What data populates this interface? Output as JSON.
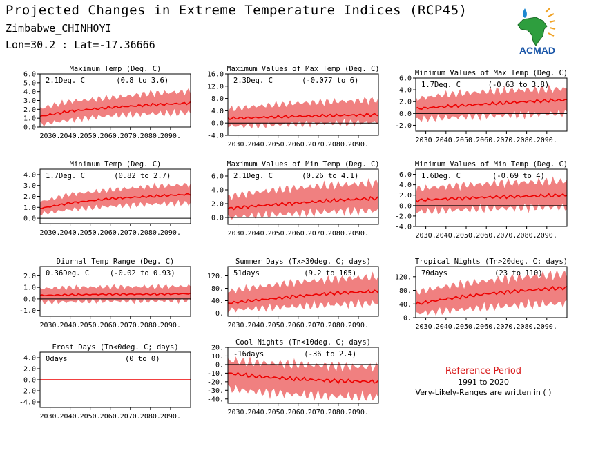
{
  "header": {
    "title": "Projected Changes in Extreme Temperature Indices (RCP45)",
    "site": "Zimbabwe_CHINHOYI",
    "coords": "Lon=30.2 : Lat=-17.36666"
  },
  "logo": {
    "text": "ACMAD",
    "icon": "acmad-africa-logo"
  },
  "colors": {
    "band": "#f08080",
    "line": "#ee0000",
    "axis": "#000000",
    "refTitle": "#d81a1a"
  },
  "reference": {
    "title": "Reference Period",
    "years": "1991 to 2020",
    "note": "Very-Likely-Ranges are written in ( )"
  },
  "chart_data": [
    {
      "type": "area",
      "title": "Maximum Temp (Deg. C)",
      "summary": "2.1Deg. C",
      "range": "(0.8 to 3.6)",
      "ylim": [
        0,
        6
      ],
      "yticks": [
        0,
        1,
        2,
        3,
        4,
        5,
        6
      ],
      "ytick_labels": [
        "0.0",
        "1.0",
        "2.0",
        "3.0",
        "4.0",
        "5.0",
        "6.0"
      ],
      "xticks": [
        "2030.",
        "2040.",
        "2050.",
        "2060.",
        "2070.",
        "2080.",
        "2090."
      ],
      "median_x": [
        2025,
        2040,
        2060,
        2080,
        2100
      ],
      "median_y": [
        1.2,
        1.8,
        2.2,
        2.5,
        2.7
      ],
      "band_lower": [
        0.3,
        0.8,
        1.3,
        1.5,
        1.6
      ],
      "band_upper": [
        2.1,
        2.9,
        3.3,
        3.8,
        4.0
      ]
    },
    {
      "type": "area",
      "title": "Maximum Values of Max Temp (Deg. C)",
      "summary": "2.3Deg. C",
      "range": "(-0.077 to 6)",
      "ylim": [
        -4,
        16
      ],
      "yticks": [
        -4,
        0,
        4,
        8,
        12,
        16
      ],
      "ytick_labels": [
        "-4.0",
        "0.0",
        "4.0",
        "8.0",
        "12.0",
        "16.0"
      ],
      "xticks": [
        "2030.",
        "2040.",
        "2050.",
        "2060.",
        "2070.",
        "2080.",
        "2090."
      ],
      "median_x": [
        2025,
        2040,
        2060,
        2080,
        2100
      ],
      "median_y": [
        1.5,
        1.8,
        2.2,
        2.5,
        2.7
      ],
      "band_lower": [
        -1.0,
        -0.8,
        -0.3,
        0.0,
        0.2
      ],
      "band_upper": [
        4.5,
        5.5,
        6.5,
        7.0,
        7.5
      ]
    },
    {
      "type": "area",
      "title": "Minimum Values of Max Temp (Deg. C)",
      "summary": "1.7Deg. C",
      "range": "(-0.63 to 3.8)",
      "ylim": [
        -3,
        6
      ],
      "yticks": [
        -2,
        0,
        2,
        4,
        6
      ],
      "ytick_labels": [
        "-2.0",
        "0.0",
        "2.0",
        "4.0",
        "6.0"
      ],
      "xticks": [
        "2030.",
        "2040.",
        "2050.",
        "2060.",
        "2070.",
        "2080.",
        "2090."
      ],
      "median_x": [
        2025,
        2040,
        2060,
        2080,
        2100
      ],
      "median_y": [
        0.8,
        1.2,
        1.6,
        2.0,
        2.3
      ],
      "band_lower": [
        -1.0,
        -0.7,
        -0.4,
        -0.2,
        0.0
      ],
      "band_upper": [
        2.5,
        3.2,
        3.7,
        4.0,
        4.2
      ]
    },
    {
      "type": "area",
      "title": "Minimum Temp (Deg. C)",
      "summary": "1.7Deg. C",
      "range": "(0.82 to 2.7)",
      "ylim": [
        -0.5,
        4.5
      ],
      "yticks": [
        0,
        1,
        2,
        3,
        4
      ],
      "ytick_labels": [
        "0.0",
        "1.0",
        "2.0",
        "3.0",
        "4.0"
      ],
      "xticks": [
        "2030.",
        "2040.",
        "2050.",
        "2060.",
        "2070.",
        "2080.",
        "2090."
      ],
      "median_x": [
        2025,
        2040,
        2060,
        2080,
        2100
      ],
      "median_y": [
        0.9,
        1.4,
        1.8,
        2.0,
        2.2
      ],
      "band_lower": [
        0.4,
        0.8,
        1.1,
        1.3,
        1.4
      ],
      "band_upper": [
        1.5,
        2.2,
        2.6,
        2.9,
        3.1
      ]
    },
    {
      "type": "area",
      "title": "Maximum Values of Min Temp (Deg. C)",
      "summary": "2.1Deg. C",
      "range": "(0.26 to 4.1)",
      "ylim": [
        -1,
        7
      ],
      "yticks": [
        0,
        2,
        4,
        6
      ],
      "ytick_labels": [
        "0.0",
        "2.0",
        "4.0",
        "6.0"
      ],
      "xticks": [
        "2030.",
        "2040.",
        "2050.",
        "2060.",
        "2070.",
        "2080.",
        "2090."
      ],
      "median_x": [
        2025,
        2040,
        2060,
        2080,
        2100
      ],
      "median_y": [
        1.3,
        1.7,
        2.1,
        2.5,
        2.8
      ],
      "band_lower": [
        0.0,
        0.3,
        0.6,
        0.9,
        1.0
      ],
      "band_upper": [
        3.0,
        3.7,
        4.3,
        4.7,
        5.0
      ]
    },
    {
      "type": "area",
      "title": "Minimum Values of Min Temp (Deg. C)",
      "summary": "1.6Deg. C",
      "range": "(-0.69 to 4)",
      "ylim": [
        -4,
        7
      ],
      "yticks": [
        -4,
        -2,
        0,
        2,
        4,
        6
      ],
      "ytick_labels": [
        "-4.0",
        "-2.0",
        "0.0",
        "2.0",
        "4.0",
        "6.0"
      ],
      "xticks": [
        "2030.",
        "2040.",
        "2050.",
        "2060.",
        "2070.",
        "2080.",
        "2090."
      ],
      "median_x": [
        2025,
        2040,
        2060,
        2080,
        2100
      ],
      "median_y": [
        1.0,
        1.3,
        1.6,
        1.8,
        2.0
      ],
      "band_lower": [
        -1.2,
        -0.9,
        -0.6,
        -0.4,
        -0.3
      ],
      "band_upper": [
        3.2,
        3.7,
        4.2,
        4.5,
        4.7
      ]
    },
    {
      "type": "area",
      "title": "Diurnal Temp Range (Deg. C)",
      "summary": "0.36Deg. C",
      "range": "(-0.02 to 0.93)",
      "ylim": [
        -1.5,
        2.8
      ],
      "yticks": [
        -1,
        0,
        1,
        2
      ],
      "ytick_labels": [
        "-1.0",
        "0.0",
        "1.0",
        "2.0"
      ],
      "xticks": [
        "2030.",
        "2040.",
        "2050.",
        "2060.",
        "2070.",
        "2080.",
        "2090."
      ],
      "median_x": [
        2025,
        2040,
        2060,
        2080,
        2100
      ],
      "median_y": [
        0.3,
        0.35,
        0.4,
        0.4,
        0.45
      ],
      "band_lower": [
        -0.3,
        -0.25,
        -0.2,
        -0.2,
        -0.15
      ],
      "band_upper": [
        0.9,
        1.0,
        1.05,
        1.05,
        1.1
      ]
    },
    {
      "type": "area",
      "title": "Summer Days (Tx>30deg. C; days)",
      "summary": "51days",
      "range": "(9.2 to 105)",
      "ylim": [
        -10,
        150
      ],
      "yticks": [
        0,
        40,
        80,
        120
      ],
      "ytick_labels": [
        "0.",
        "40.",
        "80.",
        "120."
      ],
      "xticks": [
        "2030.",
        "2040.",
        "2050.",
        "2060.",
        "2070.",
        "2080.",
        "2090."
      ],
      "median_x": [
        2025,
        2040,
        2060,
        2080,
        2100
      ],
      "median_y": [
        32,
        42,
        55,
        65,
        70
      ],
      "band_lower": [
        10,
        15,
        22,
        28,
        32
      ],
      "band_upper": [
        70,
        85,
        100,
        110,
        118
      ]
    },
    {
      "type": "area",
      "title": "Tropical Nights (Tn>20deg. C; days)",
      "summary": "70days",
      "range": "(23 to 110)",
      "ylim": [
        0,
        150
      ],
      "yticks": [
        0,
        40,
        80,
        120
      ],
      "ytick_labels": [
        "0.",
        "40.",
        "80.",
        "120."
      ],
      "xticks": [
        "2030.",
        "2040.",
        "2050.",
        "2060.",
        "2070.",
        "2080.",
        "2090."
      ],
      "median_x": [
        2025,
        2040,
        2060,
        2080,
        2100
      ],
      "median_y": [
        40,
        55,
        70,
        80,
        88
      ],
      "band_lower": [
        12,
        20,
        30,
        38,
        42
      ],
      "band_upper": [
        75,
        92,
        108,
        120,
        128
      ]
    },
    {
      "type": "area",
      "title": "Frost Days (Tn<0deg. C; days)",
      "summary": "0days",
      "range": "(0 to 0)",
      "ylim": [
        -5,
        5
      ],
      "yticks": [
        -4,
        -2,
        0,
        2,
        4
      ],
      "ytick_labels": [
        "-4.0",
        "-2.0",
        "0.0",
        "2.0",
        "4.0"
      ],
      "xticks": [
        "2030.",
        "2040.",
        "2050.",
        "2060.",
        "2070.",
        "2080.",
        "2090."
      ],
      "median_x": [
        2025,
        2100
      ],
      "median_y": [
        0,
        0
      ],
      "band_lower": [
        0,
        0
      ],
      "band_upper": [
        0,
        0
      ]
    },
    {
      "type": "area",
      "title": "Cool Nights (Tn<10deg. C; days)",
      "summary": "-16days",
      "range": "(-36 to 2.4)",
      "ylim": [
        -45,
        20
      ],
      "yticks": [
        -40,
        -30,
        -20,
        -10,
        0,
        10,
        20
      ],
      "ytick_labels": [
        "-40.",
        "-30.",
        "-20.",
        "-10.",
        "0.",
        "10.",
        "20."
      ],
      "xticks": [
        "2030.",
        "2040.",
        "2050.",
        "2060.",
        "2070.",
        "2080.",
        "2090."
      ],
      "median_x": [
        2025,
        2040,
        2060,
        2080,
        2100
      ],
      "median_y": [
        -10,
        -14,
        -17,
        -19,
        -20
      ],
      "band_lower": [
        -28,
        -32,
        -35,
        -37,
        -38
      ],
      "band_upper": [
        5,
        2,
        0,
        -2,
        -3
      ]
    }
  ]
}
